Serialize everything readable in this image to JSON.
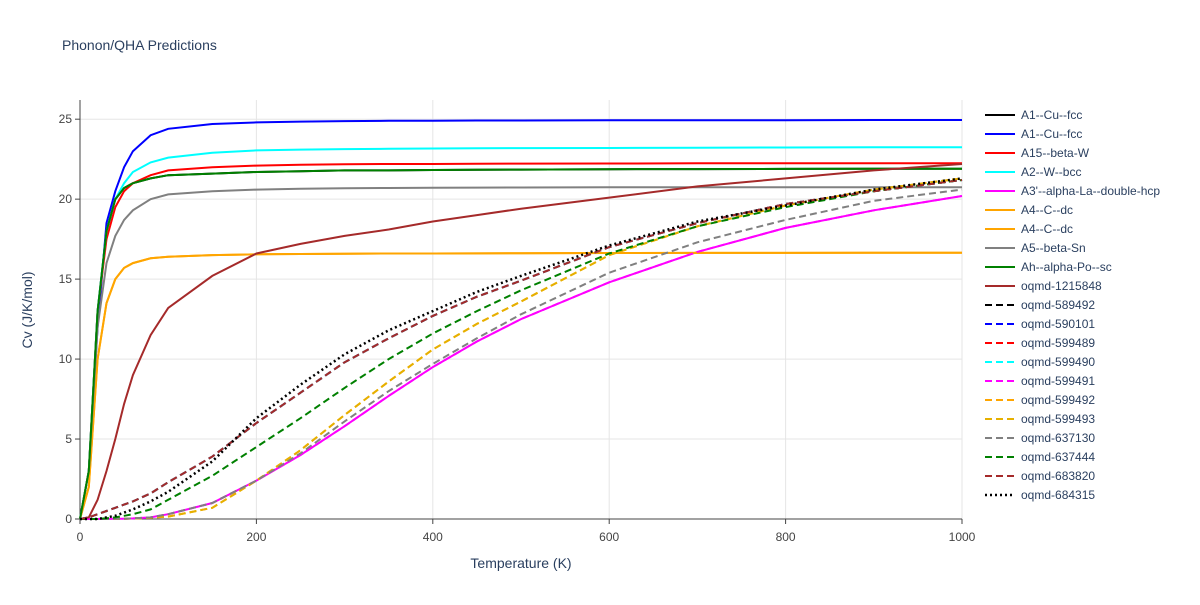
{
  "chart_data": {
    "type": "line",
    "title": "Phonon/QHA Predictions",
    "x_label": "Temperature (K)",
    "y_label": "Cv (J/K/mol)",
    "xlim": [
      0,
      1000
    ],
    "ylim": [
      0,
      26.2
    ],
    "xticks": [
      0,
      200,
      400,
      600,
      800,
      1000
    ],
    "yticks": [
      0,
      5,
      10,
      15,
      20,
      25
    ],
    "grid": true,
    "legend": "right",
    "x": [
      0,
      10,
      20,
      30,
      40,
      50,
      60,
      80,
      100,
      150,
      200,
      250,
      300,
      350,
      400,
      450,
      500,
      600,
      700,
      800,
      900,
      1000
    ],
    "series": [
      {
        "name": "A1--Cu--fcc",
        "color": "#000000",
        "dash": "solid",
        "values": [
          0,
          3,
          13,
          18,
          20,
          20.7,
          21,
          21.3,
          21.5,
          21.6,
          21.7,
          21.75,
          21.8,
          21.8,
          21.82,
          21.84,
          21.85,
          21.87,
          21.88,
          21.89,
          21.9,
          21.9
        ]
      },
      {
        "name": "A1--Cu--fcc",
        "color": "#0000ff",
        "dash": "solid",
        "values": [
          0,
          3,
          12,
          18.5,
          20.5,
          22,
          23,
          24,
          24.4,
          24.7,
          24.8,
          24.85,
          24.88,
          24.9,
          24.9,
          24.92,
          24.92,
          24.93,
          24.94,
          24.94,
          24.95,
          24.95
        ]
      },
      {
        "name": "A15--beta-W",
        "color": "#ff0000",
        "dash": "solid",
        "values": [
          0,
          3,
          13,
          17.5,
          19.5,
          20.5,
          21,
          21.5,
          21.8,
          22.0,
          22.1,
          22.15,
          22.18,
          22.2,
          22.2,
          22.21,
          22.22,
          22.23,
          22.24,
          22.24,
          22.25,
          22.25
        ]
      },
      {
        "name": "A2--W--bcc",
        "color": "#00ffff",
        "dash": "solid",
        "values": [
          0,
          3,
          13,
          18,
          20,
          21,
          21.7,
          22.3,
          22.6,
          22.9,
          23.05,
          23.1,
          23.13,
          23.15,
          23.17,
          23.18,
          23.19,
          23.2,
          23.22,
          23.23,
          23.24,
          23.25
        ]
      },
      {
        "name": "A3'--alpha-La--double-hcp",
        "color": "#ff00ff",
        "dash": "solid",
        "values": [
          0,
          0,
          0,
          0,
          0.01,
          0.02,
          0.04,
          0.1,
          0.3,
          1.0,
          2.4,
          4.0,
          5.8,
          7.7,
          9.5,
          11.1,
          12.5,
          14.8,
          16.7,
          18.2,
          19.3,
          20.2
        ]
      },
      {
        "name": "A4--C--dc",
        "color": "#ffa500",
        "dash": "solid",
        "values": [
          0,
          2,
          10,
          13.5,
          15,
          15.7,
          16,
          16.3,
          16.4,
          16.5,
          16.55,
          16.57,
          16.58,
          16.6,
          16.6,
          16.61,
          16.62,
          16.63,
          16.64,
          16.64,
          16.65,
          16.65
        ]
      },
      {
        "name": "A4--C--dc",
        "color": "#ffa500",
        "dash": "solid",
        "values": [
          0,
          2,
          10,
          13.5,
          15,
          15.7,
          16,
          16.3,
          16.4,
          16.5,
          16.55,
          16.57,
          16.58,
          16.6,
          16.6,
          16.61,
          16.62,
          16.63,
          16.64,
          16.64,
          16.65,
          16.65
        ]
      },
      {
        "name": "A5--beta-Sn",
        "color": "#808080",
        "dash": "solid",
        "values": [
          0,
          3,
          12,
          16,
          17.7,
          18.7,
          19.3,
          20,
          20.3,
          20.5,
          20.6,
          20.65,
          20.68,
          20.7,
          20.71,
          20.72,
          20.73,
          20.74,
          20.74,
          20.75,
          20.75,
          20.75
        ]
      },
      {
        "name": "Ah--alpha-Po--sc",
        "color": "#008000",
        "dash": "solid",
        "values": [
          0,
          3,
          13,
          18,
          20,
          20.7,
          21,
          21.3,
          21.5,
          21.6,
          21.7,
          21.75,
          21.8,
          21.8,
          21.82,
          21.84,
          21.85,
          21.87,
          21.88,
          21.89,
          21.9,
          21.9
        ]
      },
      {
        "name": "oqmd-1215848",
        "color": "#a52a2a",
        "dash": "solid",
        "values": [
          0,
          0.1,
          1.2,
          3,
          5,
          7.2,
          9,
          11.5,
          13.2,
          15.2,
          16.6,
          17.2,
          17.7,
          18.1,
          18.6,
          19.0,
          19.4,
          20.1,
          20.8,
          21.3,
          21.8,
          22.2
        ]
      },
      {
        "name": "oqmd-589492",
        "color": "#000000",
        "dash": "dash",
        "values": [
          0,
          0.1,
          0.3,
          0.5,
          0.7,
          0.9,
          1.1,
          1.6,
          2.3,
          3.9,
          6.0,
          7.9,
          9.8,
          11.3,
          12.7,
          13.9,
          14.9,
          17.0,
          18.5,
          19.7,
          20.5,
          21.2
        ]
      },
      {
        "name": "oqmd-590101",
        "color": "#0000ff",
        "dash": "dash",
        "values": [
          0,
          0.1,
          0.3,
          0.5,
          0.7,
          0.9,
          1.1,
          1.6,
          2.3,
          3.9,
          6.0,
          7.9,
          9.8,
          11.3,
          12.7,
          13.9,
          14.9,
          17.0,
          18.5,
          19.7,
          20.5,
          21.2
        ]
      },
      {
        "name": "oqmd-599489",
        "color": "#ff0000",
        "dash": "dash",
        "values": [
          0,
          0.1,
          0.3,
          0.5,
          0.7,
          0.9,
          1.1,
          1.6,
          2.3,
          3.9,
          6.0,
          7.9,
          9.8,
          11.3,
          12.7,
          13.9,
          14.9,
          17.0,
          18.5,
          19.7,
          20.5,
          21.2
        ]
      },
      {
        "name": "oqmd-599490",
        "color": "#00ffff",
        "dash": "dash",
        "values": [
          0,
          0.1,
          0.3,
          0.5,
          0.7,
          0.9,
          1.1,
          1.6,
          2.3,
          3.9,
          6.0,
          7.9,
          9.8,
          11.3,
          12.7,
          13.9,
          14.9,
          17.0,
          18.5,
          19.7,
          20.5,
          21.2
        ]
      },
      {
        "name": "oqmd-599491",
        "color": "#ff00ff",
        "dash": "dash",
        "values": [
          0,
          0,
          0,
          0,
          0.01,
          0.02,
          0.04,
          0.1,
          0.3,
          1.0,
          2.4,
          4.0,
          5.8,
          7.7,
          9.5,
          11.1,
          12.5,
          14.8,
          16.7,
          18.2,
          19.3,
          20.2
        ]
      },
      {
        "name": "oqmd-599492",
        "color": "#ffa500",
        "dash": "dash",
        "values": [
          0,
          0,
          0,
          0,
          0.01,
          0.02,
          0.03,
          0.08,
          0.15,
          0.7,
          2.4,
          4.3,
          6.5,
          8.6,
          10.6,
          12.2,
          13.6,
          16.5,
          18.3,
          19.6,
          20.6,
          21.3
        ]
      },
      {
        "name": "oqmd-599493",
        "color": "#e6b000",
        "dash": "dash",
        "values": [
          0,
          0,
          0,
          0,
          0.01,
          0.02,
          0.03,
          0.08,
          0.15,
          0.7,
          2.4,
          4.3,
          6.5,
          8.6,
          10.6,
          12.2,
          13.6,
          16.5,
          18.3,
          19.6,
          20.6,
          21.3
        ]
      },
      {
        "name": "oqmd-637130",
        "color": "#808080",
        "dash": "dash",
        "values": [
          0,
          0,
          0,
          0,
          0.01,
          0.02,
          0.04,
          0.1,
          0.3,
          1.0,
          2.4,
          4.1,
          6.1,
          8.0,
          9.7,
          11.3,
          12.8,
          15.4,
          17.3,
          18.7,
          19.9,
          20.6
        ]
      },
      {
        "name": "oqmd-637444",
        "color": "#008000",
        "dash": "dash",
        "values": [
          0,
          0,
          0,
          0.05,
          0.1,
          0.2,
          0.3,
          0.6,
          1.2,
          2.7,
          4.5,
          6.3,
          8.2,
          10,
          11.6,
          13,
          14.3,
          16.6,
          18.3,
          19.5,
          20.5,
          21.2
        ]
      },
      {
        "name": "oqmd-683820",
        "color": "#a52a2a",
        "dash": "dash",
        "values": [
          0,
          0.1,
          0.3,
          0.5,
          0.7,
          0.9,
          1.1,
          1.6,
          2.3,
          3.9,
          6.0,
          7.9,
          9.8,
          11.3,
          12.7,
          13.9,
          14.9,
          17.0,
          18.5,
          19.7,
          20.5,
          21.2
        ]
      },
      {
        "name": "oqmd-684315",
        "color": "#000000",
        "dash": "dot",
        "values": [
          0,
          0,
          0,
          0.1,
          0.2,
          0.4,
          0.6,
          1.1,
          1.7,
          3.6,
          6.3,
          8.4,
          10.3,
          11.8,
          13.0,
          14.2,
          15.2,
          17.1,
          18.6,
          19.6,
          20.6,
          21.3
        ]
      }
    ]
  }
}
